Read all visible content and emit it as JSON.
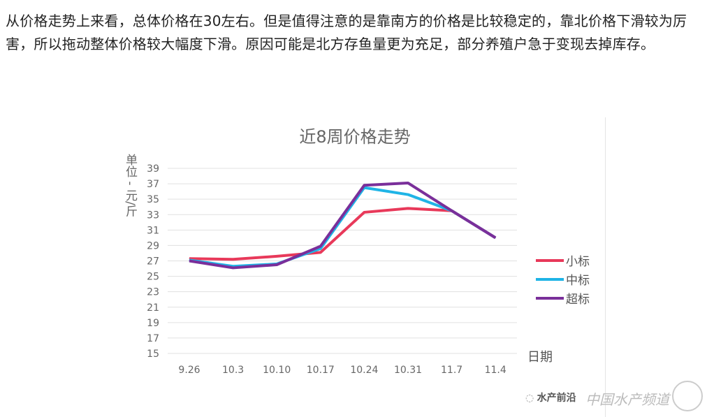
{
  "paragraph": "从价格走势上来看，总体价格在30左右。但是值得注意的是靠南方的价格是比较稳定的，靠北价格下滑较为厉害，所以拖动整体价格较大幅度下滑。原因可能是北方存鱼量更为充足，部分养殖户急于变现去掉库存。",
  "watermark": {
    "account": "水产前沿",
    "site": "中国水产频道"
  },
  "chart_data": {
    "type": "line",
    "title": "近8周价格走势",
    "ylabel": "单位 - 元/斤",
    "xlabel": "日期",
    "categories": [
      "9.26",
      "10.3",
      "10.10",
      "10.17",
      "10.24",
      "10.31",
      "11.7",
      "11.4"
    ],
    "ylim": [
      15,
      39
    ],
    "yticks": [
      39,
      37,
      35,
      33,
      31,
      29,
      27,
      25,
      23,
      21,
      19,
      17,
      15
    ],
    "grid": true,
    "legend": "right",
    "series": [
      {
        "name": "小标",
        "color": "#e8395a",
        "values": [
          27.3,
          27.2,
          27.6,
          28.1,
          33.3,
          33.8,
          33.5,
          30.0
        ]
      },
      {
        "name": "中标",
        "color": "#1fb4e6",
        "values": [
          27.1,
          26.3,
          26.6,
          28.6,
          36.5,
          35.6,
          33.5,
          30.0
        ]
      },
      {
        "name": "超标",
        "color": "#7a2f9a",
        "values": [
          27.0,
          26.1,
          26.5,
          28.9,
          36.8,
          37.1,
          33.5,
          30.0
        ]
      }
    ]
  }
}
